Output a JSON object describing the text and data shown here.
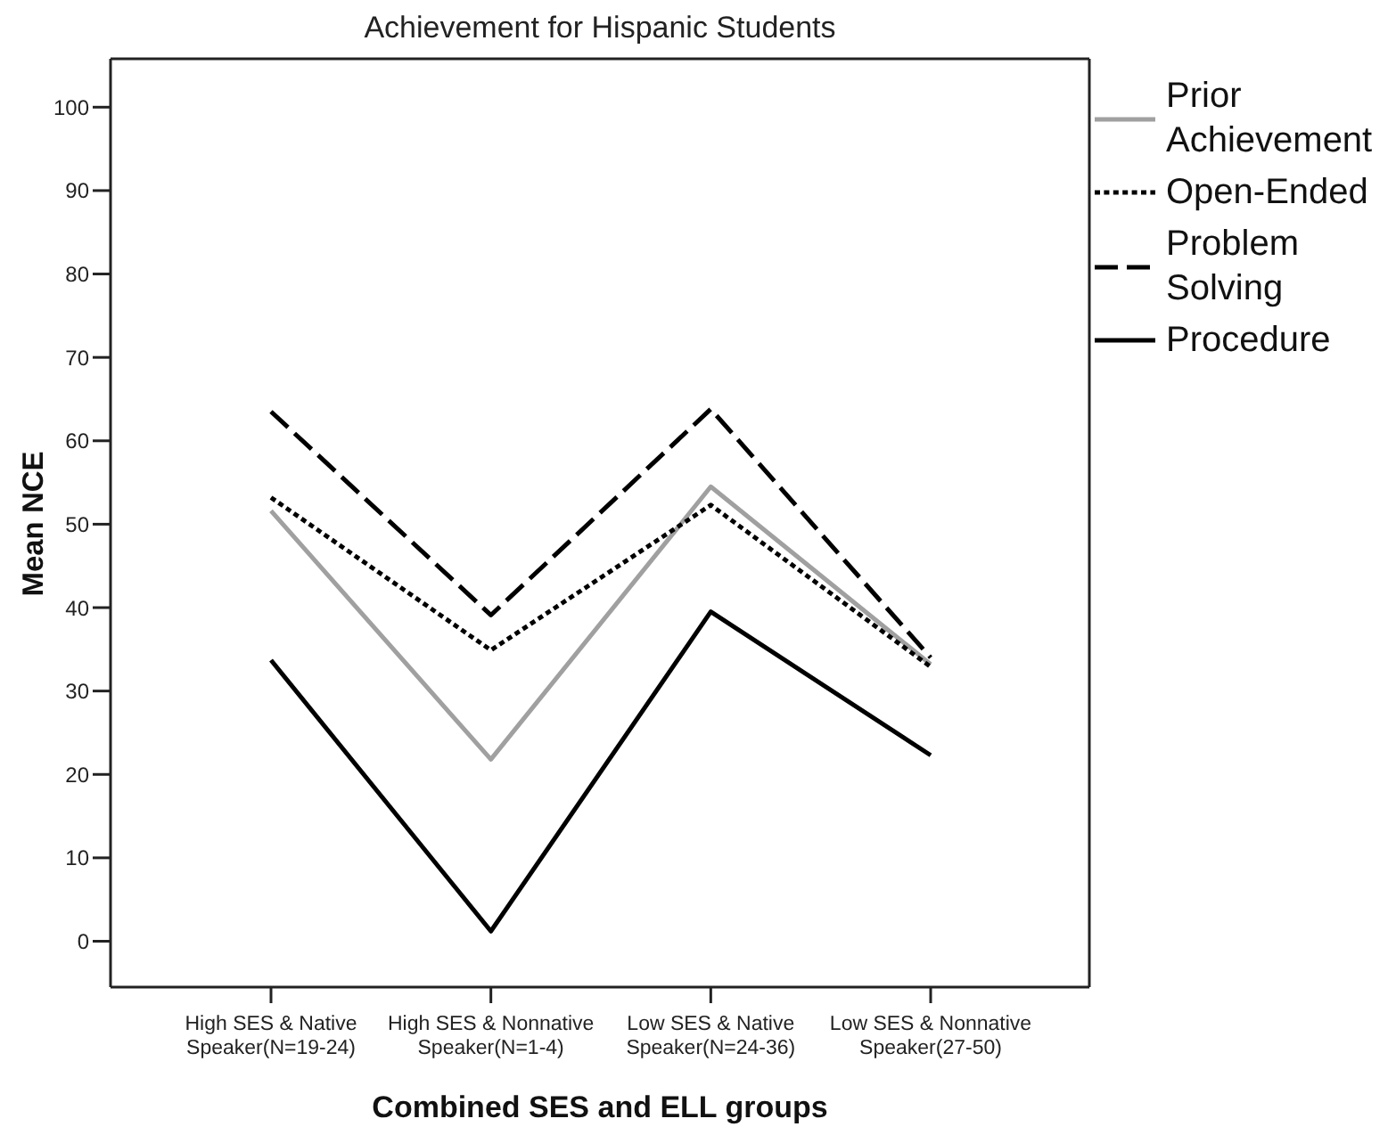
{
  "chart_data": {
    "type": "line",
    "title": "Achievement for Hispanic Students",
    "xlabel": "Combined SES and ELL groups",
    "ylabel": "Mean NCE",
    "categories": [
      "High SES & Native Speaker(N=19-24)",
      "High SES & Nonnative Speaker(N=1-4)",
      "Low SES & Native Speaker(N=24-36)",
      "Low SES & Nonnative Speaker(27-50)"
    ],
    "series": [
      {
        "name": "Prior Achievement",
        "color": "#a0a0a0",
        "line_style": "solid",
        "values": [
          51.6,
          21.8,
          54.5,
          33.2
        ]
      },
      {
        "name": "Open-Ended",
        "color": "#000000",
        "line_style": "dotted",
        "values": [
          53.2,
          34.9,
          52.3,
          32.9
        ]
      },
      {
        "name": "Problem Solving",
        "color": "#000000",
        "line_style": "dashed",
        "values": [
          63.5,
          39.1,
          63.8,
          34.0
        ]
      },
      {
        "name": "Procedure",
        "color": "#000000",
        "line_style": "solid",
        "values": [
          33.7,
          1.2,
          39.5,
          22.3
        ]
      }
    ],
    "ylim": [
      -5.5,
      105.8
    ],
    "yticks": [
      0,
      10,
      20,
      30,
      40,
      50,
      60,
      70,
      80,
      90,
      100
    ],
    "legend": "top right",
    "marker": "none"
  }
}
